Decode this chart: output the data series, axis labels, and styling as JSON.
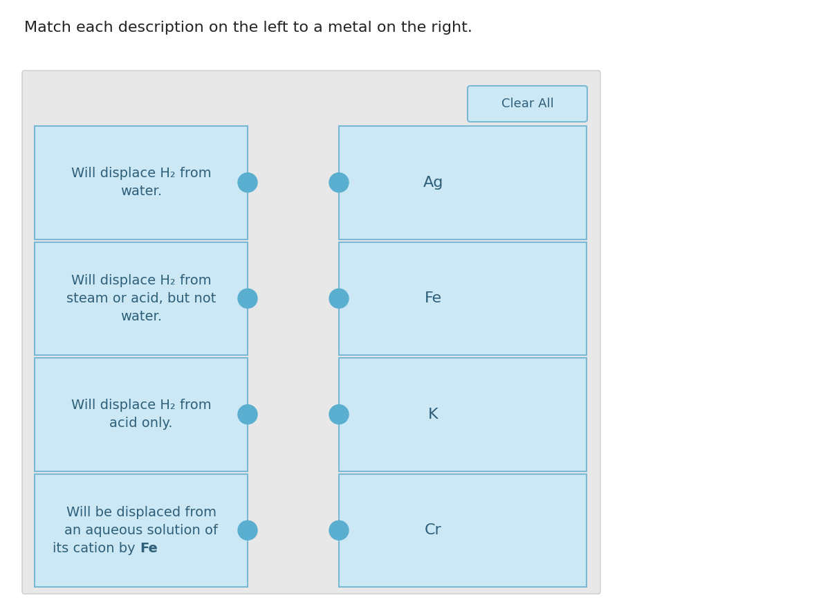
{
  "title": "Match each description on the left to a metal on the right.",
  "title_fontsize": 16,
  "title_color": "#222222",
  "outer_bg": "#ffffff",
  "panel_bg": "#e8e8e8",
  "box_fill": "#cce8f4",
  "box_border": "#7ab8d4",
  "dot_color": "#5aafd0",
  "left_descriptions": [
    [
      "Will displace H₂ from",
      "water."
    ],
    [
      "Will displace H₂ from",
      "steam or acid, but not",
      "water."
    ],
    [
      "Will displace H₂ from",
      "acid only."
    ],
    [
      "Will be displaced from",
      "an aqueous solution of",
      "its cation by Fe"
    ]
  ],
  "left_bold_last_word": [
    false,
    false,
    false,
    true
  ],
  "right_metals": [
    "Ag",
    "Fe",
    "K",
    "Cr"
  ],
  "clear_all_label": "Clear All",
  "text_color": "#2e5f7a",
  "text_fontsize": 14,
  "metal_fontsize": 16,
  "btn_fontsize": 13
}
